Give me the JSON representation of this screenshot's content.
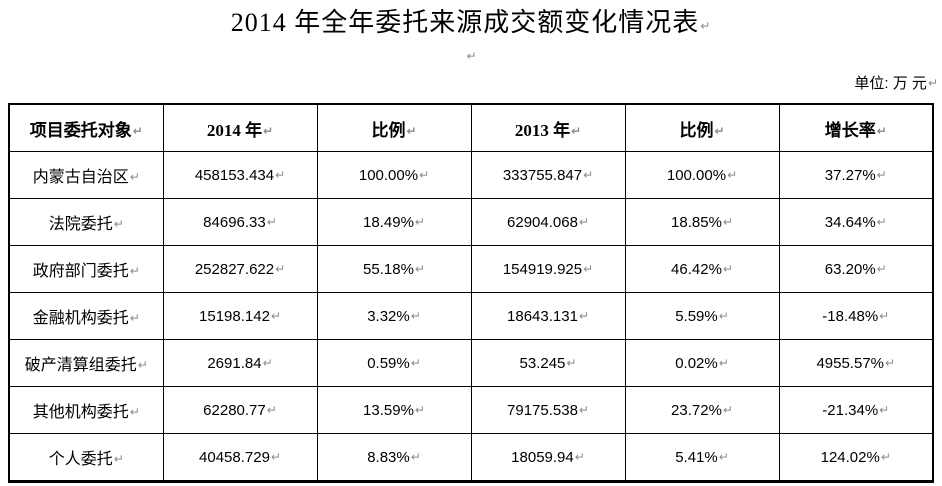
{
  "document": {
    "title": "2014 年全年委托来源成交额变化情况表",
    "unit_label": "单位: 万 元"
  },
  "marks": {
    "ret": "↵"
  },
  "table": {
    "headers": [
      "项目委托对象",
      "2014 年",
      "比例",
      "2013 年",
      "比例",
      "增长率"
    ],
    "rows": [
      [
        "内蒙古自治区",
        "458153.434",
        "100.00%",
        "333755.847",
        "100.00%",
        "37.27%"
      ],
      [
        "法院委托",
        "84696.33",
        "18.49%",
        "62904.068",
        "18.85%",
        "34.64%"
      ],
      [
        "政府部门委托",
        "252827.622",
        "55.18%",
        "154919.925",
        "46.42%",
        "63.20%"
      ],
      [
        "金融机构委托",
        "15198.142",
        "3.32%",
        "18643.131",
        "5.59%",
        "-18.48%"
      ],
      [
        "破产清算组委托",
        "2691.84",
        "0.59%",
        "53.245",
        "0.02%",
        "4955.57%"
      ],
      [
        "其他机构委托",
        "62280.77",
        "13.59%",
        "79175.538",
        "23.72%",
        "-21.34%"
      ],
      [
        "个人委托",
        "40458.729",
        "8.83%",
        "18059.94",
        "5.41%",
        "124.02%"
      ]
    ]
  }
}
